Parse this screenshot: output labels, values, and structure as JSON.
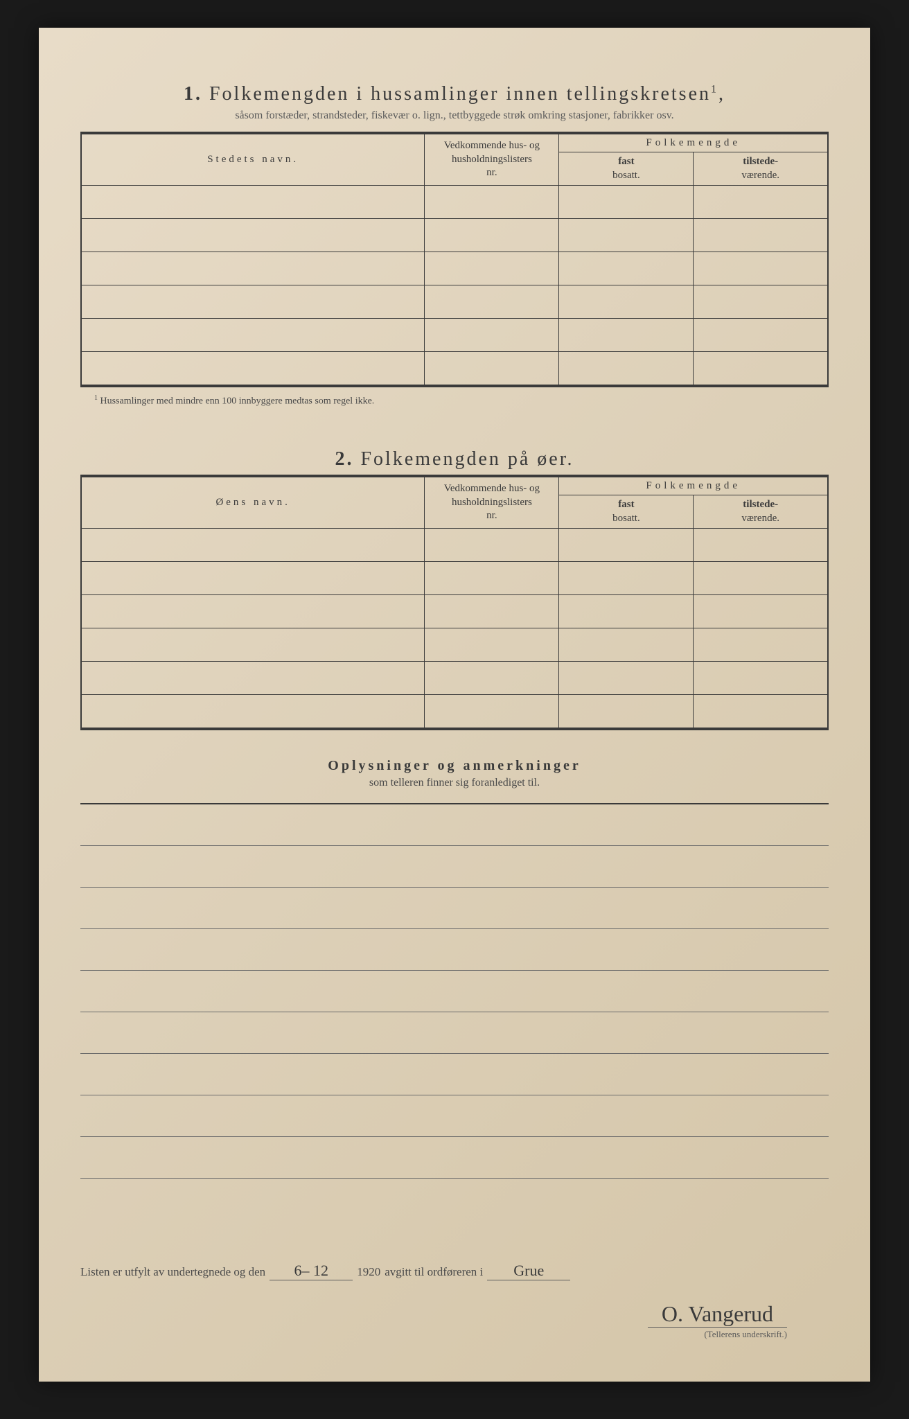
{
  "section1": {
    "number": "1.",
    "title": "Folkemengden i hussamlinger innen tellingskretsen",
    "title_sup": "1",
    "subtitle": "såsom forstæder, strandsteder, fiskevær o. lign., tettbyggede strøk omkring stasjoner, fabrikker osv.",
    "col_name": "Stedets navn.",
    "col_nr_l1": "Vedkommende hus- og",
    "col_nr_l2": "husholdningslisters",
    "col_nr_l3": "nr.",
    "col_folke": "Folkemengde",
    "col_fast_l1": "fast",
    "col_fast_l2": "bosatt.",
    "col_til_l1": "tilstede-",
    "col_til_l2": "værende.",
    "rows": 6,
    "footnote_sup": "1",
    "footnote": "Hussamlinger med mindre enn 100 innbyggere medtas som regel ikke."
  },
  "section2": {
    "number": "2.",
    "title": "Folkemengden på øer.",
    "col_name": "Øens navn.",
    "rows": 6
  },
  "section3": {
    "title": "Oplysninger og anmerkninger",
    "subtitle": "som telleren finner sig foranlediget til.",
    "ruled_lines": 9
  },
  "signature": {
    "prefix": "Listen er utfylt av undertegnede og den",
    "date": "6– 12",
    "year": "1920",
    "mid": "avgitt til ordføreren i",
    "place": "Grue",
    "name": "O. Vangerud",
    "label": "(Tellerens underskrift.)"
  },
  "style": {
    "page_bg": "#e0d3bc",
    "ink": "#3a3a3a",
    "faint": "#5a5a5a"
  }
}
